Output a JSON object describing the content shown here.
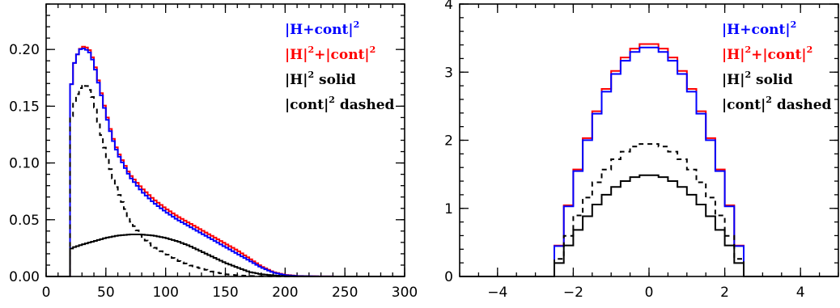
{
  "chart_data": [
    {
      "type": "line",
      "xlim": [
        0,
        300
      ],
      "ylim": [
        0,
        0.24
      ],
      "xticks": [
        0,
        50,
        100,
        150,
        200,
        250,
        300
      ],
      "xtick_labels": [
        "0",
        "50",
        "100",
        "150",
        "200",
        "250",
        "300"
      ],
      "yticks": [
        0.0,
        0.05,
        0.1,
        0.15,
        0.2
      ],
      "ytick_labels": [
        "0.00",
        "0.05",
        "0.10",
        "0.15",
        "0.20"
      ],
      "grid": false,
      "legend_position": "top-right",
      "legend": [
        {
          "pre": "|H+cont|",
          "sup": "2",
          "post": "",
          "color": "#0000ff"
        },
        {
          "pre": "|H|",
          "sup": "2",
          "post": "+|cont|",
          "sup2": "2",
          "color": "#ff0000"
        },
        {
          "pre": "|H|",
          "sup": "2",
          "post": " solid",
          "color": "#000000"
        },
        {
          "pre": "|cont|",
          "sup": "2",
          "post": " dashed",
          "color": "#000000"
        }
      ],
      "series": [
        {
          "style": "red",
          "color": "#ff0000",
          "dash": "",
          "x": [
            20,
            24,
            28,
            32,
            36,
            40,
            45,
            50,
            55,
            60,
            70,
            80,
            90,
            100,
            110,
            120,
            130,
            140,
            150,
            160,
            170,
            180,
            190,
            200,
            210,
            230,
            250,
            300
          ],
          "y": [
            0.16,
            0.19,
            0.2,
            0.203,
            0.2,
            0.19,
            0.167,
            0.145,
            0.125,
            0.11,
            0.09,
            0.078,
            0.068,
            0.06,
            0.053,
            0.047,
            0.041,
            0.035,
            0.029,
            0.023,
            0.016,
            0.009,
            0.004,
            0.0015,
            0.0005,
            0.0001,
            0,
            0
          ]
        },
        {
          "style": "blue",
          "color": "#0000ff",
          "dash": "",
          "x": [
            20,
            24,
            28,
            32,
            36,
            40,
            45,
            50,
            55,
            60,
            70,
            80,
            90,
            100,
            110,
            120,
            130,
            140,
            150,
            160,
            170,
            180,
            190,
            200,
            210,
            230,
            250,
            300
          ],
          "y": [
            0.16,
            0.19,
            0.2,
            0.201,
            0.198,
            0.188,
            0.165,
            0.143,
            0.123,
            0.108,
            0.088,
            0.075,
            0.065,
            0.057,
            0.05,
            0.044,
            0.038,
            0.032,
            0.026,
            0.02,
            0.014,
            0.008,
            0.0035,
            0.0012,
            0.0004,
            0.0001,
            0,
            0
          ]
        },
        {
          "style": "solid",
          "color": "#000000",
          "dash": "",
          "x": [
            20,
            24,
            30,
            40,
            50,
            60,
            70,
            80,
            90,
            100,
            110,
            120,
            130,
            140,
            150,
            160,
            170,
            180,
            190,
            200,
            210,
            230,
            300
          ],
          "y": [
            0.024,
            0.026,
            0.028,
            0.031,
            0.034,
            0.036,
            0.037,
            0.037,
            0.036,
            0.034,
            0.031,
            0.027,
            0.022,
            0.017,
            0.012,
            0.008,
            0.004,
            0.002,
            0.001,
            0.0003,
            0.0001,
            0,
            0
          ]
        },
        {
          "style": "dashed",
          "color": "#000000",
          "dash": "6,5",
          "x": [
            20,
            24,
            28,
            32,
            36,
            40,
            45,
            50,
            55,
            60,
            70,
            80,
            90,
            100,
            110,
            120,
            130,
            140,
            150,
            160,
            170,
            180,
            190,
            200,
            300
          ],
          "y": [
            0.135,
            0.155,
            0.165,
            0.17,
            0.165,
            0.155,
            0.13,
            0.108,
            0.09,
            0.075,
            0.05,
            0.035,
            0.026,
            0.02,
            0.014,
            0.01,
            0.007,
            0.004,
            0.002,
            0.001,
            0.0005,
            0.0002,
            0.0001,
            0,
            0
          ]
        }
      ]
    },
    {
      "type": "line",
      "xlim": [
        -5,
        5
      ],
      "ylim": [
        0,
        4
      ],
      "xticks": [
        -4,
        -2,
        0,
        2,
        4
      ],
      "xtick_labels": [
        "−4",
        "−2",
        "0",
        "2",
        "4"
      ],
      "yticks": [
        0,
        1,
        2,
        3,
        4
      ],
      "ytick_labels": [
        "0",
        "1",
        "2",
        "3",
        "4"
      ],
      "grid": false,
      "legend_position": "top-right",
      "legend": [
        {
          "pre": "|H+cont|",
          "sup": "2",
          "post": "",
          "color": "#0000ff"
        },
        {
          "pre": "|H|",
          "sup": "2",
          "post": "+|cont|",
          "sup2": "2",
          "color": "#ff0000"
        },
        {
          "pre": "|H|",
          "sup": "2",
          "post": " solid",
          "color": "#000000"
        },
        {
          "pre": "|cont|",
          "sup": "2",
          "post": " dashed",
          "color": "#000000"
        }
      ],
      "series": [
        {
          "style": "red",
          "color": "#ff0000",
          "dash": "",
          "A": 3.42,
          "a": 2.55
        },
        {
          "style": "blue",
          "color": "#0000ff",
          "dash": "",
          "A": 3.37,
          "a": 2.55
        },
        {
          "style": "dashed",
          "color": "#000000",
          "dash": "6,5",
          "A": 1.95,
          "a": 2.55
        },
        {
          "style": "solid",
          "color": "#000000",
          "dash": "",
          "A": 1.49,
          "a": 2.55
        }
      ]
    }
  ]
}
